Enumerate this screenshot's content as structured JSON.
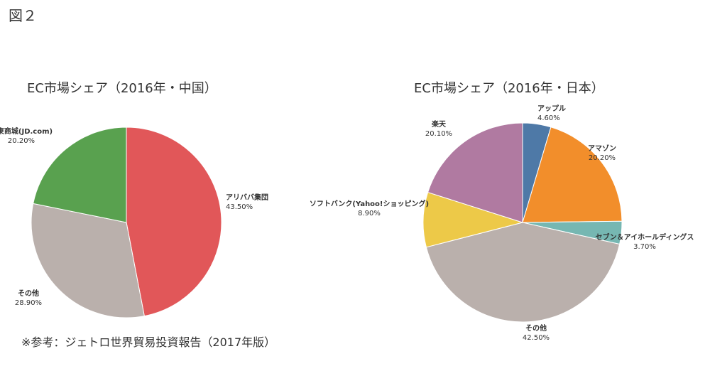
{
  "figure_label": "図２",
  "source_note": "※参考：ジェトロ世界貿易投資報告（2017年版）",
  "chart_data": [
    {
      "type": "pie",
      "title": "EC市場シェア（2016年・中国）",
      "slices": [
        {
          "name": "アリババ集団",
          "value": 43.5,
          "label": "43.50%",
          "color": "#e15759"
        },
        {
          "name": "その他",
          "value": 28.9,
          "label": "28.90%",
          "color": "#bab0ac"
        },
        {
          "name": "京東商城(JD.com)",
          "value": 20.2,
          "label": "20.20%",
          "color": "#59a14f"
        }
      ]
    },
    {
      "type": "pie",
      "title": "EC市場シェア（2016年・日本）",
      "slices": [
        {
          "name": "アップル",
          "value": 4.6,
          "label": "4.60%",
          "color": "#4e79a7"
        },
        {
          "name": "アマゾン",
          "value": 20.2,
          "label": "20.20%",
          "color": "#f28e2b"
        },
        {
          "name": "セブン＆アイホールディングス",
          "value": 3.7,
          "label": "3.70%",
          "color": "#76b7b2"
        },
        {
          "name": "その他",
          "value": 42.5,
          "label": "42.50%",
          "color": "#bab0ac"
        },
        {
          "name": "ソフトバンク(Yahoo!ショッピング)",
          "value": 8.9,
          "label": "8.90%",
          "color": "#edc948"
        },
        {
          "name": "楽天",
          "value": 20.1,
          "label": "20.10%",
          "color": "#b07aa1"
        }
      ]
    }
  ]
}
